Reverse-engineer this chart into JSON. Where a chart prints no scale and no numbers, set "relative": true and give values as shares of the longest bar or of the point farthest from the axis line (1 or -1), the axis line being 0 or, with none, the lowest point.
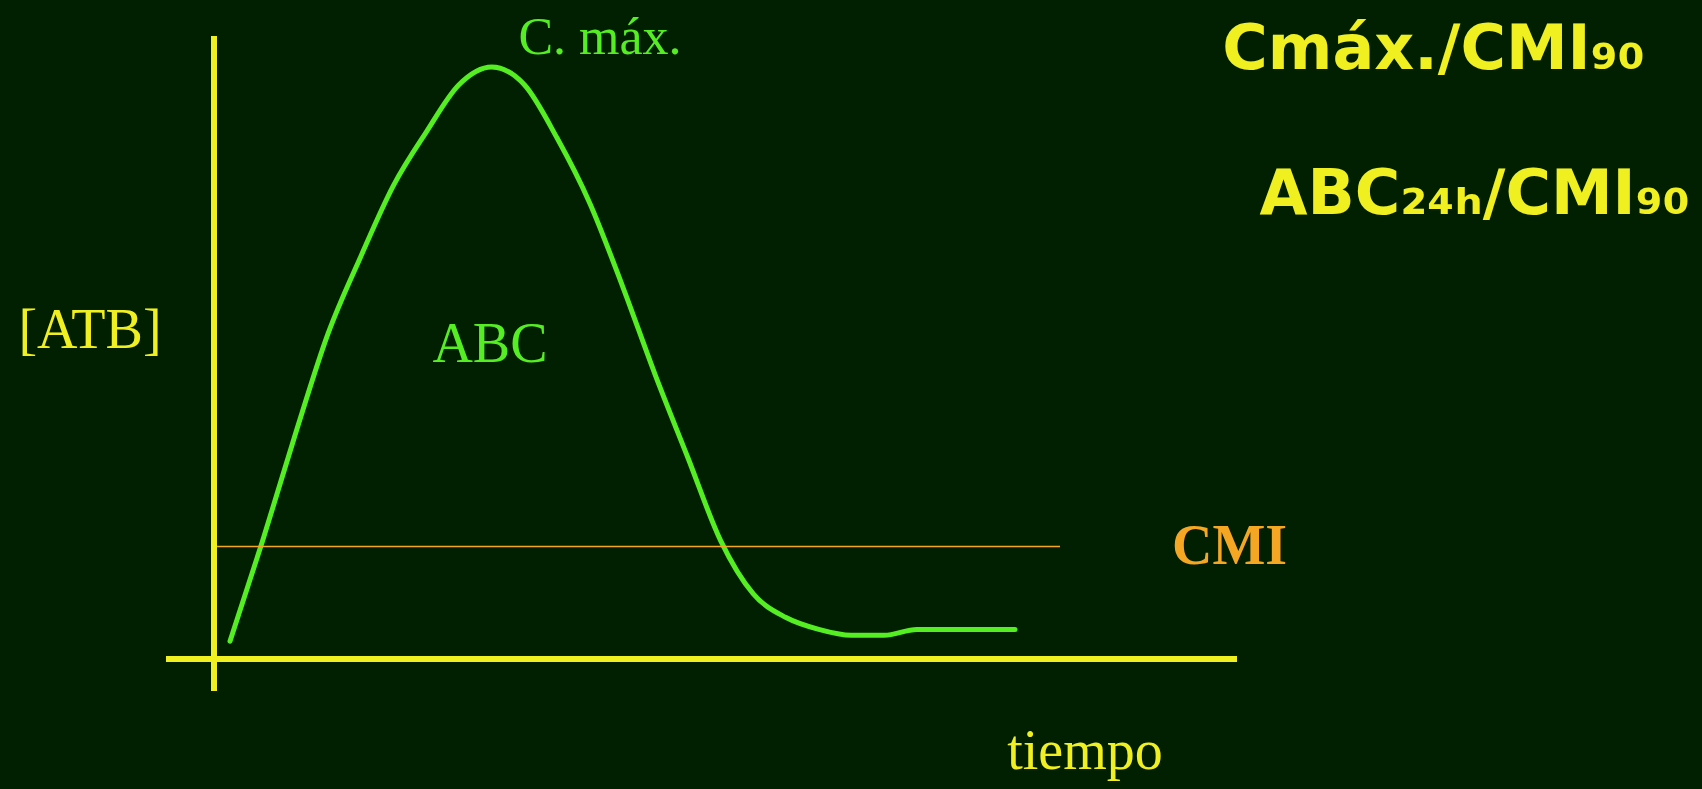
{
  "chart_data": {
    "type": "line",
    "relative": true,
    "xlabel": "tiempo",
    "ylabel": "[ATB]",
    "categories": [
      null,
      null,
      null,
      null,
      null,
      null,
      null,
      null,
      null,
      null,
      null,
      null,
      null,
      null,
      null,
      null,
      null,
      null,
      null,
      null,
      null,
      null,
      null,
      null,
      null
    ],
    "series": [
      {
        "color": "#55ee22",
        "values": [
          0.03,
          0.2,
          0.38,
          0.55,
          0.68,
          0.8,
          0.89,
          0.97,
          1,
          0.97,
          0.88,
          0.77,
          0.63,
          0.48,
          0.34,
          0.2,
          0.11,
          0.07,
          0.05,
          0.04,
          0.04,
          0.05,
          0.05,
          0.05,
          0.05
        ]
      }
    ],
    "ref_lines": [
      {
        "axis": "y",
        "value": 0.19,
        "label": "CMI",
        "color": "#f5a623"
      }
    ],
    "annotations": [
      "C. máx.",
      "ABC",
      "Cmáx./CMI₉₀",
      "ABC₂₄ₕ/CMI₉₀"
    ],
    "marker": "none",
    "line_style": "solid"
  }
}
